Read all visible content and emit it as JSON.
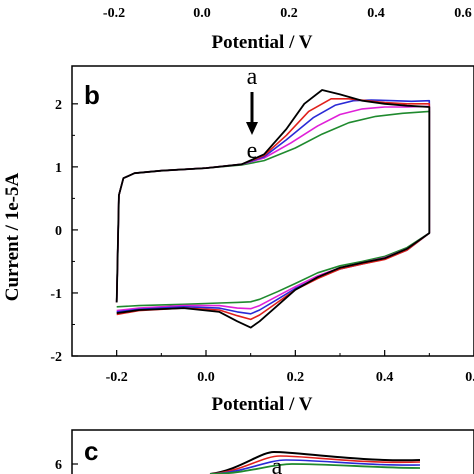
{
  "top_panel_fragment": {
    "x_ticks": [
      "-0.2",
      "0.0",
      "0.2",
      "0.4",
      "0.6"
    ],
    "xlabel": "Potential / V"
  },
  "chart_data": {
    "type": "line",
    "panel_label": "b",
    "xlabel": "Potential / V",
    "ylabel": "Current / 1e-5A",
    "xlim": [
      -0.3,
      0.6
    ],
    "ylim": [
      -2,
      2.6
    ],
    "x_ticks": [
      "-0.2",
      "0.0",
      "0.2",
      "0.4",
      "0.6"
    ],
    "y_ticks": [
      "-2",
      "-1",
      "0",
      "1",
      "2"
    ],
    "annotation": {
      "top": "a",
      "bottom": "e",
      "arrow": "down"
    },
    "grid": false,
    "series": [
      {
        "color": "#000000",
        "forward": [
          [
            -0.2,
            -1.15
          ],
          [
            -0.195,
            0.55
          ],
          [
            -0.185,
            0.82
          ],
          [
            -0.16,
            0.9
          ],
          [
            -0.1,
            0.94
          ],
          [
            0.0,
            0.98
          ],
          [
            0.08,
            1.04
          ],
          [
            0.13,
            1.2
          ],
          [
            0.18,
            1.6
          ],
          [
            0.22,
            2.0
          ],
          [
            0.26,
            2.22
          ],
          [
            0.3,
            2.15
          ],
          [
            0.35,
            2.05
          ],
          [
            0.4,
            2.0
          ],
          [
            0.45,
            1.97
          ],
          [
            0.5,
            1.95
          ],
          [
            0.5,
            -0.05
          ]
        ],
        "reverse": [
          [
            0.5,
            -0.05
          ],
          [
            0.45,
            -0.3
          ],
          [
            0.4,
            -0.45
          ],
          [
            0.35,
            -0.52
          ],
          [
            0.3,
            -0.6
          ],
          [
            0.25,
            -0.75
          ],
          [
            0.2,
            -0.95
          ],
          [
            0.16,
            -1.2
          ],
          [
            0.12,
            -1.45
          ],
          [
            0.1,
            -1.55
          ],
          [
            0.07,
            -1.45
          ],
          [
            0.03,
            -1.3
          ],
          [
            -0.05,
            -1.24
          ],
          [
            -0.15,
            -1.27
          ],
          [
            -0.2,
            -1.32
          ]
        ]
      },
      {
        "color": "#e0201c",
        "forward": [
          [
            -0.2,
            -1.15
          ],
          [
            -0.195,
            0.55
          ],
          [
            -0.185,
            0.82
          ],
          [
            -0.16,
            0.9
          ],
          [
            -0.1,
            0.94
          ],
          [
            0.0,
            0.98
          ],
          [
            0.08,
            1.04
          ],
          [
            0.13,
            1.18
          ],
          [
            0.18,
            1.5
          ],
          [
            0.23,
            1.88
          ],
          [
            0.28,
            2.08
          ],
          [
            0.32,
            2.08
          ],
          [
            0.36,
            2.05
          ],
          [
            0.4,
            2.02
          ],
          [
            0.45,
            2.0
          ],
          [
            0.5,
            2.0
          ],
          [
            0.5,
            -0.05
          ]
        ],
        "reverse": [
          [
            0.5,
            -0.05
          ],
          [
            0.45,
            -0.32
          ],
          [
            0.4,
            -0.47
          ],
          [
            0.35,
            -0.54
          ],
          [
            0.3,
            -0.62
          ],
          [
            0.25,
            -0.77
          ],
          [
            0.2,
            -0.95
          ],
          [
            0.16,
            -1.15
          ],
          [
            0.12,
            -1.35
          ],
          [
            0.1,
            -1.42
          ],
          [
            0.07,
            -1.36
          ],
          [
            0.03,
            -1.27
          ],
          [
            -0.05,
            -1.24
          ],
          [
            -0.15,
            -1.28
          ],
          [
            -0.2,
            -1.34
          ]
        ]
      },
      {
        "color": "#2a2ad6",
        "forward": [
          [
            -0.2,
            -1.15
          ],
          [
            -0.195,
            0.55
          ],
          [
            -0.185,
            0.82
          ],
          [
            -0.16,
            0.9
          ],
          [
            -0.1,
            0.94
          ],
          [
            0.0,
            0.98
          ],
          [
            0.08,
            1.04
          ],
          [
            0.13,
            1.16
          ],
          [
            0.18,
            1.43
          ],
          [
            0.24,
            1.78
          ],
          [
            0.29,
            1.98
          ],
          [
            0.33,
            2.05
          ],
          [
            0.37,
            2.06
          ],
          [
            0.42,
            2.05
          ],
          [
            0.46,
            2.04
          ],
          [
            0.5,
            2.05
          ],
          [
            0.5,
            -0.05
          ]
        ],
        "reverse": [
          [
            0.5,
            -0.05
          ],
          [
            0.45,
            -0.32
          ],
          [
            0.4,
            -0.46
          ],
          [
            0.35,
            -0.54
          ],
          [
            0.3,
            -0.62
          ],
          [
            0.25,
            -0.76
          ],
          [
            0.2,
            -0.93
          ],
          [
            0.16,
            -1.1
          ],
          [
            0.12,
            -1.27
          ],
          [
            0.1,
            -1.33
          ],
          [
            0.07,
            -1.3
          ],
          [
            0.03,
            -1.24
          ],
          [
            -0.05,
            -1.22
          ],
          [
            -0.15,
            -1.26
          ],
          [
            -0.2,
            -1.3
          ]
        ]
      },
      {
        "color": "#e020d8",
        "forward": [
          [
            -0.2,
            -1.15
          ],
          [
            -0.195,
            0.55
          ],
          [
            -0.185,
            0.82
          ],
          [
            -0.16,
            0.9
          ],
          [
            -0.1,
            0.94
          ],
          [
            0.0,
            0.98
          ],
          [
            0.08,
            1.04
          ],
          [
            0.13,
            1.14
          ],
          [
            0.19,
            1.38
          ],
          [
            0.25,
            1.65
          ],
          [
            0.3,
            1.83
          ],
          [
            0.35,
            1.92
          ],
          [
            0.4,
            1.95
          ],
          [
            0.45,
            1.95
          ],
          [
            0.5,
            1.96
          ],
          [
            0.5,
            -0.05
          ]
        ],
        "reverse": [
          [
            0.5,
            -0.05
          ],
          [
            0.45,
            -0.3
          ],
          [
            0.4,
            -0.44
          ],
          [
            0.35,
            -0.52
          ],
          [
            0.3,
            -0.6
          ],
          [
            0.25,
            -0.73
          ],
          [
            0.2,
            -0.9
          ],
          [
            0.16,
            -1.05
          ],
          [
            0.12,
            -1.2
          ],
          [
            0.1,
            -1.25
          ],
          [
            0.07,
            -1.24
          ],
          [
            0.03,
            -1.2
          ],
          [
            -0.05,
            -1.2
          ],
          [
            -0.15,
            -1.24
          ],
          [
            -0.2,
            -1.28
          ]
        ]
      },
      {
        "color": "#1f8a2e",
        "forward": [
          [
            -0.2,
            -1.15
          ],
          [
            -0.195,
            0.55
          ],
          [
            -0.185,
            0.82
          ],
          [
            -0.16,
            0.9
          ],
          [
            -0.1,
            0.94
          ],
          [
            0.0,
            0.98
          ],
          [
            0.08,
            1.03
          ],
          [
            0.13,
            1.1
          ],
          [
            0.2,
            1.3
          ],
          [
            0.26,
            1.52
          ],
          [
            0.32,
            1.7
          ],
          [
            0.38,
            1.8
          ],
          [
            0.44,
            1.85
          ],
          [
            0.5,
            1.88
          ],
          [
            0.5,
            -0.05
          ]
        ],
        "reverse": [
          [
            0.5,
            -0.05
          ],
          [
            0.45,
            -0.28
          ],
          [
            0.4,
            -0.42
          ],
          [
            0.35,
            -0.5
          ],
          [
            0.3,
            -0.57
          ],
          [
            0.25,
            -0.68
          ],
          [
            0.2,
            -0.85
          ],
          [
            0.16,
            -0.98
          ],
          [
            0.12,
            -1.1
          ],
          [
            0.1,
            -1.14
          ],
          [
            0.07,
            -1.15
          ],
          [
            0.03,
            -1.16
          ],
          [
            -0.05,
            -1.18
          ],
          [
            -0.15,
            -1.2
          ],
          [
            -0.2,
            -1.22
          ]
        ]
      }
    ]
  },
  "bottom_panel_fragment": {
    "panel_label": "c",
    "y_tick": "6",
    "annotation": "a"
  }
}
